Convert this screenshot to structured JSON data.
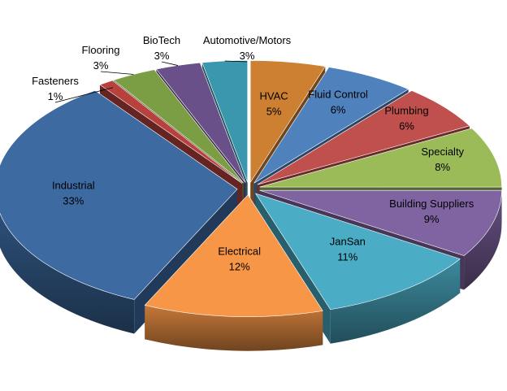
{
  "chart_data": {
    "type": "pie",
    "style": "3d-exploded",
    "unit": "%",
    "categories": [
      "HVAC",
      "Fluid Control",
      "Plumbing",
      "Specialty",
      "Building Suppliers",
      "JanSan",
      "Electrical",
      "Industrial",
      "Fasteners",
      "Flooring",
      "BioTech",
      "Automotive/Motors"
    ],
    "values": [
      5,
      6,
      6,
      8,
      9,
      11,
      12,
      33,
      1,
      3,
      3,
      3
    ],
    "labels": [
      "5%",
      "6%",
      "6%",
      "8%",
      "9%",
      "11%",
      "12%",
      "33%",
      "1%",
      "3%",
      "3%",
      "3%"
    ],
    "colors": [
      "#CD7F32",
      "#4F81BD",
      "#C0504D",
      "#9BBB59",
      "#8064A2",
      "#4BACC6",
      "#F79646",
      "#3C6AA1",
      "#B8413E",
      "#7B9D43",
      "#6A5089",
      "#3B97AD"
    ]
  }
}
